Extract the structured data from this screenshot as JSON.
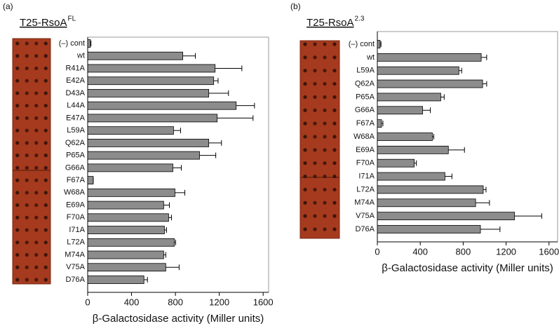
{
  "chart_data": [
    {
      "type": "bar",
      "orientation": "horizontal",
      "panel": "(a)",
      "title": "T25-RsoA",
      "title_superscript": "FL",
      "xlabel": "β-Galactosidase activity (Miller units)",
      "categories": [
        "(–) cont",
        "wt",
        "R41A",
        "E42A",
        "D43A",
        "L44A",
        "E47A",
        "L59A",
        "Q62A",
        "P65A",
        "G66A",
        "F67A",
        "W68A",
        "E69A",
        "F70A",
        "I71A",
        "L72A",
        "M74A",
        "V75A",
        "D76A"
      ],
      "values": [
        25,
        867,
        1162,
        1149,
        1104,
        1354,
        1181,
        783,
        1104,
        1020,
        777,
        51,
        796,
        693,
        738,
        700,
        790,
        693,
        712,
        513
      ],
      "errors": [
        5,
        115,
        244,
        40,
        180,
        167,
        327,
        64,
        116,
        148,
        77,
        0,
        90,
        52,
        26,
        19,
        12,
        19,
        122,
        32
      ],
      "color": "#8c8c8c",
      "xlim": [
        0,
        1650
      ],
      "xticks": [
        0,
        400,
        800,
        1200,
        1600
      ],
      "grid": false
    },
    {
      "type": "bar",
      "orientation": "horizontal",
      "panel": "(b)",
      "title": "T25-RsoA",
      "title_superscript": "2.3",
      "xlabel": "β-Galactosidase activity (Miller units)",
      "categories": [
        "(–) cont",
        "wt",
        "L59A",
        "Q62A",
        "P65A",
        "G66A",
        "F67A",
        "W68A",
        "E69A",
        "F70A",
        "I71A",
        "L72A",
        "M74A",
        "V75A",
        "D76A"
      ],
      "values": [
        26,
        968,
        760,
        981,
        591,
        422,
        39,
        513,
        662,
        344,
        630,
        987,
        916,
        1279,
        961
      ],
      "errors": [
        8,
        51,
        26,
        38,
        32,
        72,
        13,
        13,
        150,
        20,
        65,
        26,
        129,
        253,
        182
      ],
      "color": "#8c8c8c",
      "xlim": [
        0,
        1680
      ],
      "xticks": [
        0,
        400,
        800,
        1200,
        1600
      ],
      "grid": false
    }
  ]
}
